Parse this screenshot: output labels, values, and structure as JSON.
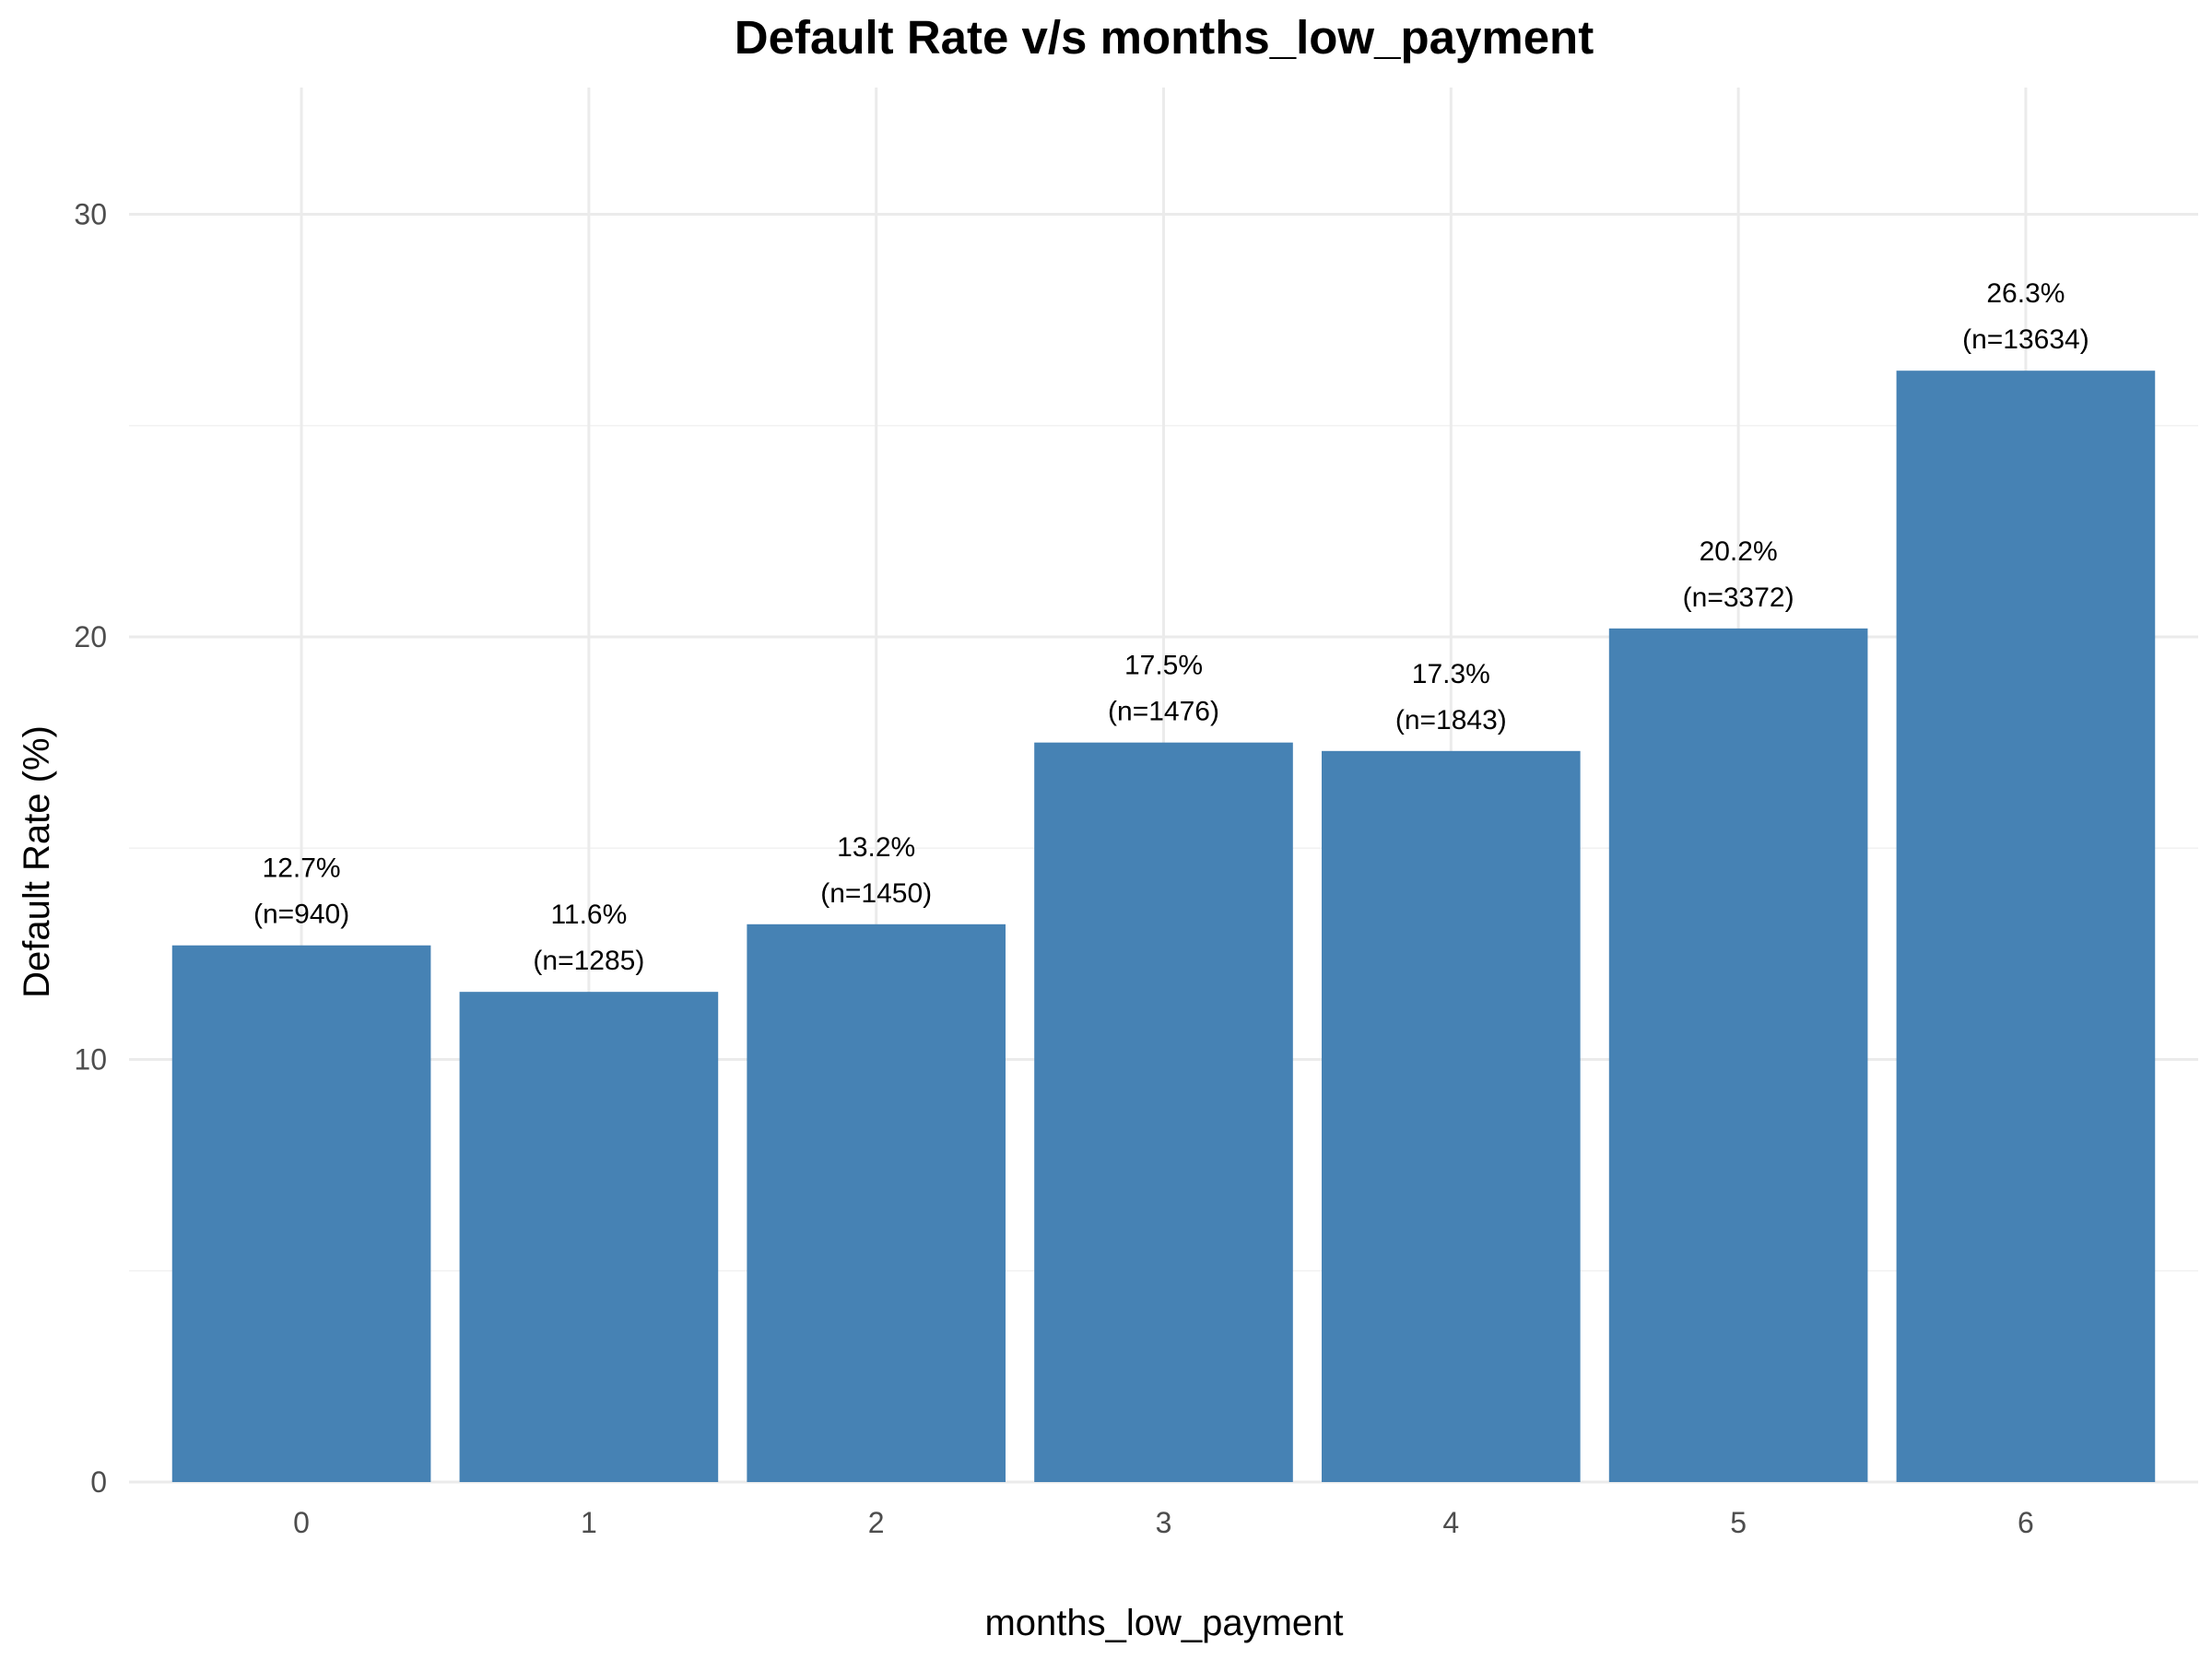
{
  "chart_data": {
    "type": "bar",
    "title": "Default Rate v/s months_low_payment",
    "xlabel": "months_low_payment",
    "ylabel": "Default Rate (%)",
    "categories": [
      "0",
      "1",
      "2",
      "3",
      "4",
      "5",
      "6"
    ],
    "values": [
      12.7,
      11.6,
      13.2,
      17.5,
      17.3,
      20.2,
      26.3
    ],
    "value_labels": [
      "12.7%",
      "11.6%",
      "13.2%",
      "17.5%",
      "17.3%",
      "20.2%",
      "26.3%"
    ],
    "count_labels": [
      "(n=940)",
      "(n=1285)",
      "(n=1450)",
      "(n=1476)",
      "(n=1843)",
      "(n=3372)",
      "(n=13634)"
    ],
    "ylim": [
      0,
      33
    ],
    "yticks": [
      0,
      10,
      20,
      30
    ],
    "ytick_labels": [
      "0",
      "10",
      "20",
      "30"
    ],
    "grid": true,
    "legend": "none",
    "bar_color": "#4682b4"
  }
}
